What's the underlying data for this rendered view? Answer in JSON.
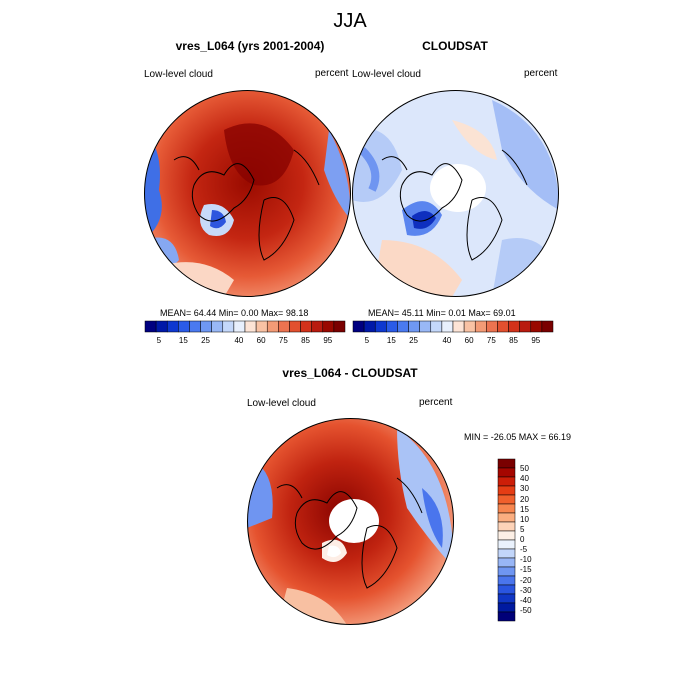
{
  "title": "JJA",
  "panels": [
    {
      "title": "vres_L064 (yrs 2001-2004)",
      "left_label": "Low-level cloud",
      "right_label": "percent",
      "stats": "MEAN=  64.44  Min=   0.00  Max=  98.18"
    },
    {
      "title": "CLOUDSAT",
      "left_label": "Low-level cloud",
      "right_label": "percent",
      "stats": "MEAN=  45.11  Min=   0.01  Max=  69.01"
    },
    {
      "title": "vres_L064 - CLOUDSAT",
      "left_label": "Low-level cloud",
      "right_label": "percent",
      "stats": "MIN = -26.05 MAX =  66.19"
    }
  ],
  "colorbar_abs": {
    "colors": [
      "#000080",
      "#0019a8",
      "#0e38d0",
      "#2a5be8",
      "#4a7af0",
      "#6f98f3",
      "#99b8f6",
      "#c4d8fb",
      "#e8f0fd",
      "#fde4d6",
      "#f9c2a4",
      "#f39b76",
      "#ec7350",
      "#e2502f",
      "#d3321b",
      "#b91b0f",
      "#990800",
      "#7a0000"
    ],
    "tick_labels": [
      "5",
      "15",
      "25",
      "40",
      "60",
      "75",
      "85",
      "95"
    ]
  },
  "colorbar_diff": {
    "colors": [
      "#7a0000",
      "#a50600",
      "#cc1e08",
      "#e53d14",
      "#f0602c",
      "#f7864f",
      "#fbae80",
      "#fdd3b8",
      "#fdf0e6",
      "#eaf2fd",
      "#c2d6fa",
      "#98b6f6",
      "#6f96f2",
      "#4a75ed",
      "#2a55e0",
      "#1036c4",
      "#001aa0",
      "#000078"
    ],
    "tick_labels": [
      "50",
      "40",
      "30",
      "20",
      "15",
      "10",
      "5",
      "0",
      "-5",
      "-10",
      "-15",
      "-20",
      "-30",
      "-40",
      "-50"
    ]
  }
}
